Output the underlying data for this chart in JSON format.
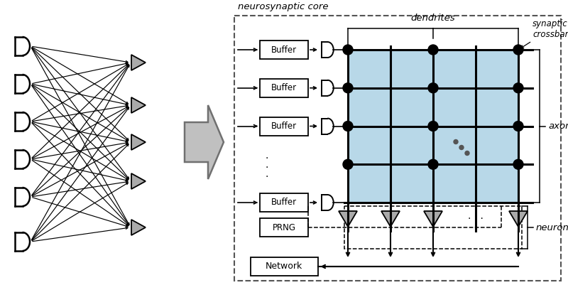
{
  "bg_color": "#ffffff",
  "fig_width": 8.0,
  "fig_height": 4.01,
  "dpi": 100,
  "label_core": "neurosynaptic core",
  "label_dendrites": "dendrites",
  "label_synaptic": "synaptic\ncrossbar",
  "label_axons": "axons",
  "label_neurons": "neurons",
  "label_network": "Network",
  "label_prng": "PRNG",
  "crossbar_color": "#b8d8e8",
  "buf_labels": [
    "Buffer",
    "Buffer",
    "Buffer",
    "Buffer"
  ]
}
